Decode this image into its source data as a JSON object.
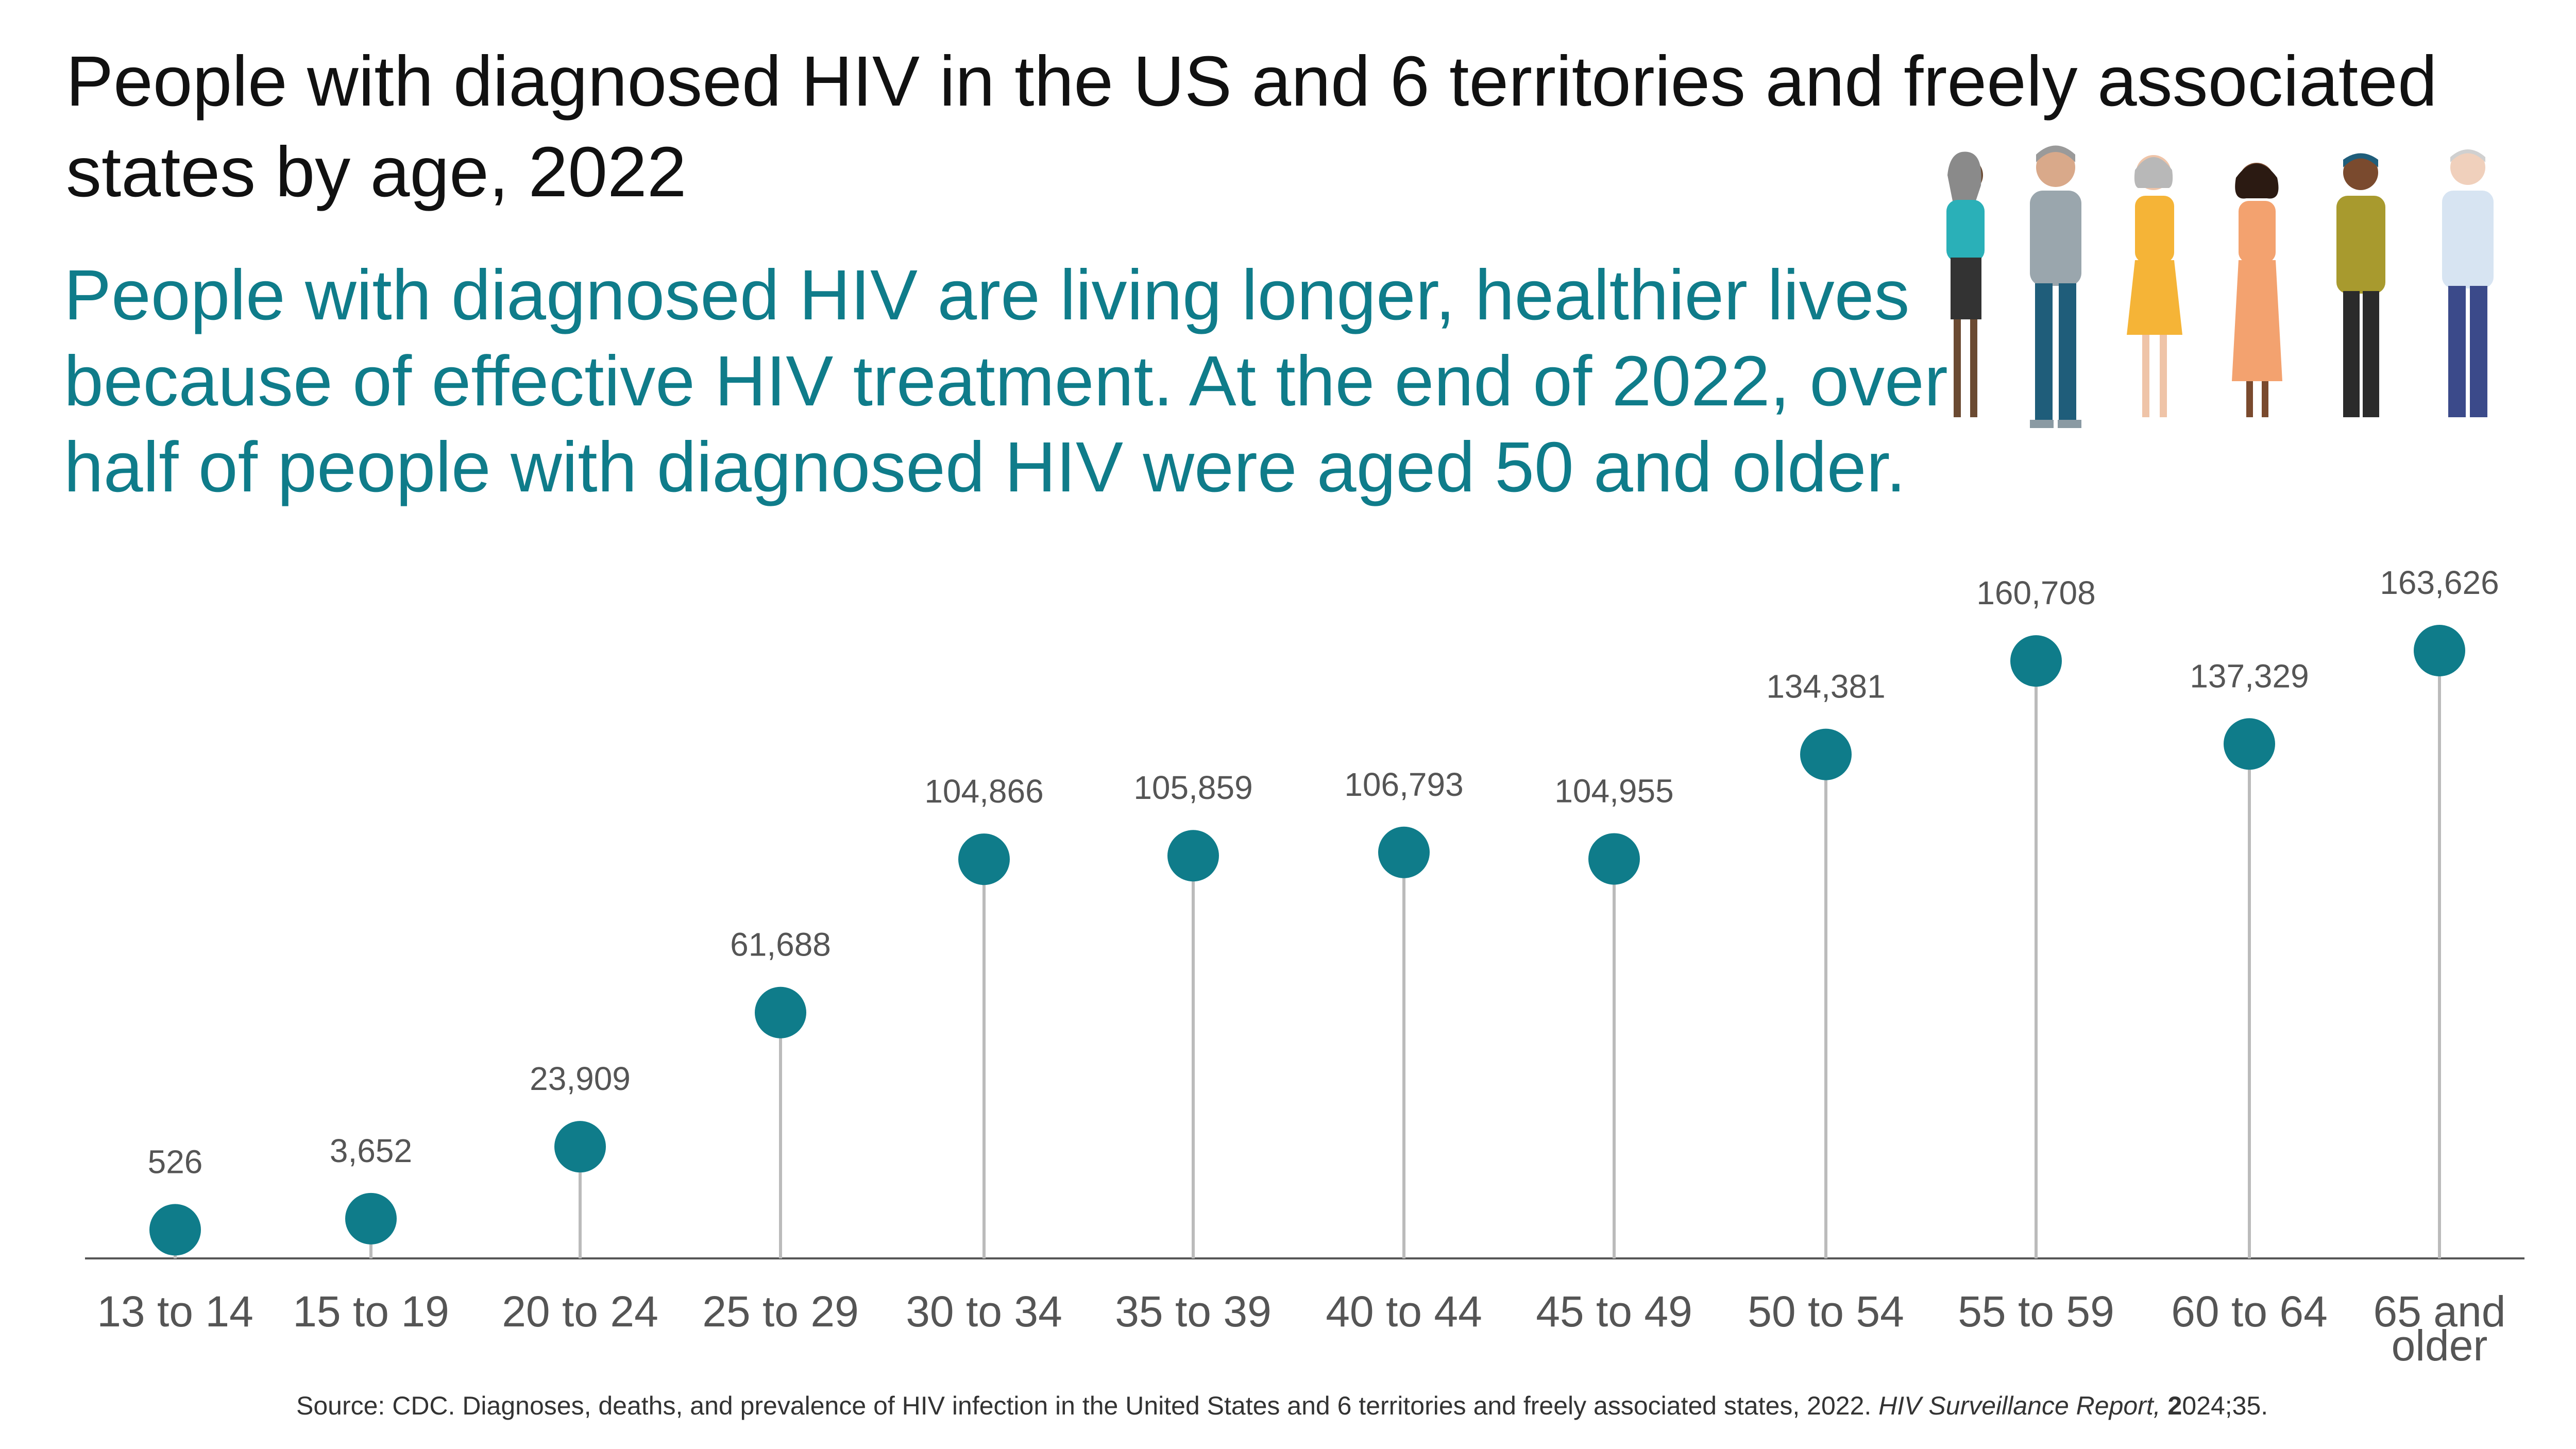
{
  "title": "People with diagnosed HIV in the US and 6 territories and freely associated states by age, 2022",
  "subtitle": "People with diagnosed HIV are living longer, healthier lives because of effective HIV treatment. At the end of 2022, over half of people with diagnosed HIV were aged 50 and older.",
  "source": {
    "prefix": "Source: CDC. Diagnoses, deaths, and prevalence of HIV infection in the United States and 6 territories and freely associated states, 2022. ",
    "journal": "HIV Surveillance Report,",
    "bold_digit": "2",
    "suffix": "024;35."
  },
  "colors": {
    "marker": "#0f7c8a",
    "stem": "#bbbbbb",
    "axis": "#555555",
    "label": "#555555"
  },
  "chart_data": {
    "type": "lollipop",
    "categories": [
      "13 to 14",
      "15 to 19",
      "20 to 24",
      "25 to 29",
      "30 to 34",
      "35 to 39",
      "40 to 44",
      "45 to 49",
      "50 to 54",
      "55 to 59",
      "60 to 64",
      "65 and older"
    ],
    "category_lines": [
      [
        "13 to 14"
      ],
      [
        "15 to 19"
      ],
      [
        "20 to 24"
      ],
      [
        "25 to 29"
      ],
      [
        "30 to 34"
      ],
      [
        "35 to 39"
      ],
      [
        "40 to 44"
      ],
      [
        "45 to 49"
      ],
      [
        "50 to 54"
      ],
      [
        "55 to 59"
      ],
      [
        "60 to 64"
      ],
      [
        "65 and",
        "older"
      ]
    ],
    "values": [
      526,
      3652,
      23909,
      61688,
      104866,
      105859,
      106793,
      104955,
      134381,
      160708,
      137329,
      163626
    ],
    "value_labels": [
      "526",
      "3,652",
      "23,909",
      "61,688",
      "104,866",
      "105,859",
      "106,793",
      "104,955",
      "134,381",
      "160,708",
      "137,329",
      "163,626"
    ],
    "grid": false
  }
}
